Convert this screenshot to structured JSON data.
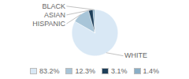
{
  "chart_data": {
    "type": "pie",
    "categories": [
      "WHITE",
      "HISPANIC",
      "ASIAN",
      "BLACK"
    ],
    "values": [
      83.2,
      12.3,
      3.1,
      1.4
    ],
    "value_labels": [
      "83.2%",
      "12.3%",
      "3.1%",
      "1.4%"
    ],
    "colors": [
      "#d9e8f5",
      "#a8c5d8",
      "#1e3f5a",
      "#8aafc7"
    ],
    "legend": "bottom"
  }
}
